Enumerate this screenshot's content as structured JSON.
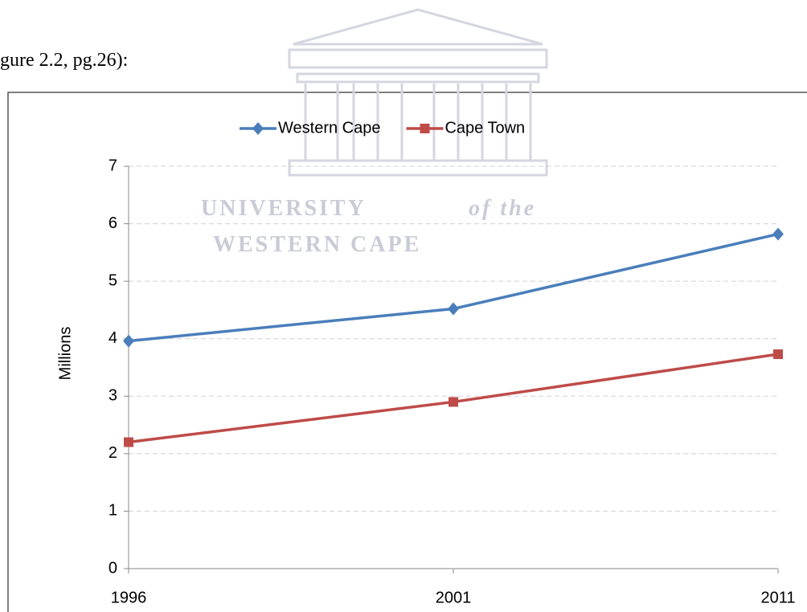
{
  "caption": "gure 2.2, pg.26):",
  "watermark": {
    "line1": "UNIVERSITY",
    "line1_suffix": "of the",
    "line2": "WESTERN CAPE"
  },
  "chart_data": {
    "type": "line",
    "y_label": "Millions",
    "categories": [
      "1996",
      "2001",
      "2011"
    ],
    "series": [
      {
        "name": "Western Cape",
        "color": "#4a7ebb",
        "marker": "diamond",
        "values": [
          3.96,
          4.52,
          5.82
        ]
      },
      {
        "name": "Cape Town",
        "color": "#be4b48",
        "marker": "square",
        "values": [
          2.2,
          2.9,
          3.73
        ]
      }
    ],
    "ylim": [
      0,
      7
    ],
    "yticks": [
      0,
      1,
      2,
      3,
      4,
      5,
      6,
      7
    ],
    "grid": true,
    "legend": "top"
  }
}
